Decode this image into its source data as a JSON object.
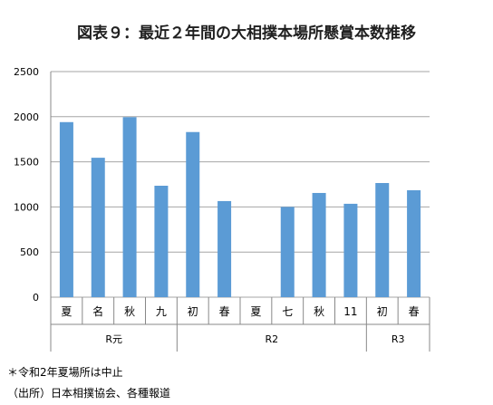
{
  "chart_data": {
    "type": "bar",
    "title": "図表９：最近２年間の大相撲本場所懸賞本数推移",
    "categories": [
      "夏",
      "名",
      "秋",
      "九",
      "初",
      "春",
      "夏",
      "七",
      "秋",
      "11",
      "初",
      "春"
    ],
    "groups": [
      {
        "label": "R元",
        "count": 4
      },
      {
        "label": "R2",
        "count": 6
      },
      {
        "label": "R3",
        "count": 2
      }
    ],
    "values": [
      1940,
      1545,
      1995,
      1235,
      1830,
      1065,
      null,
      1000,
      1155,
      1035,
      1265,
      1185
    ],
    "yticks": [
      "0",
      "500",
      "1000",
      "1500",
      "2000",
      "2500"
    ],
    "ylim": [
      0,
      2500
    ],
    "bar_color": "#5b9bd5",
    "grid": true
  },
  "notes": {
    "note1": "＊令和2年夏場所は中止",
    "note2": "（出所）日本相撲協会、各種報道"
  }
}
